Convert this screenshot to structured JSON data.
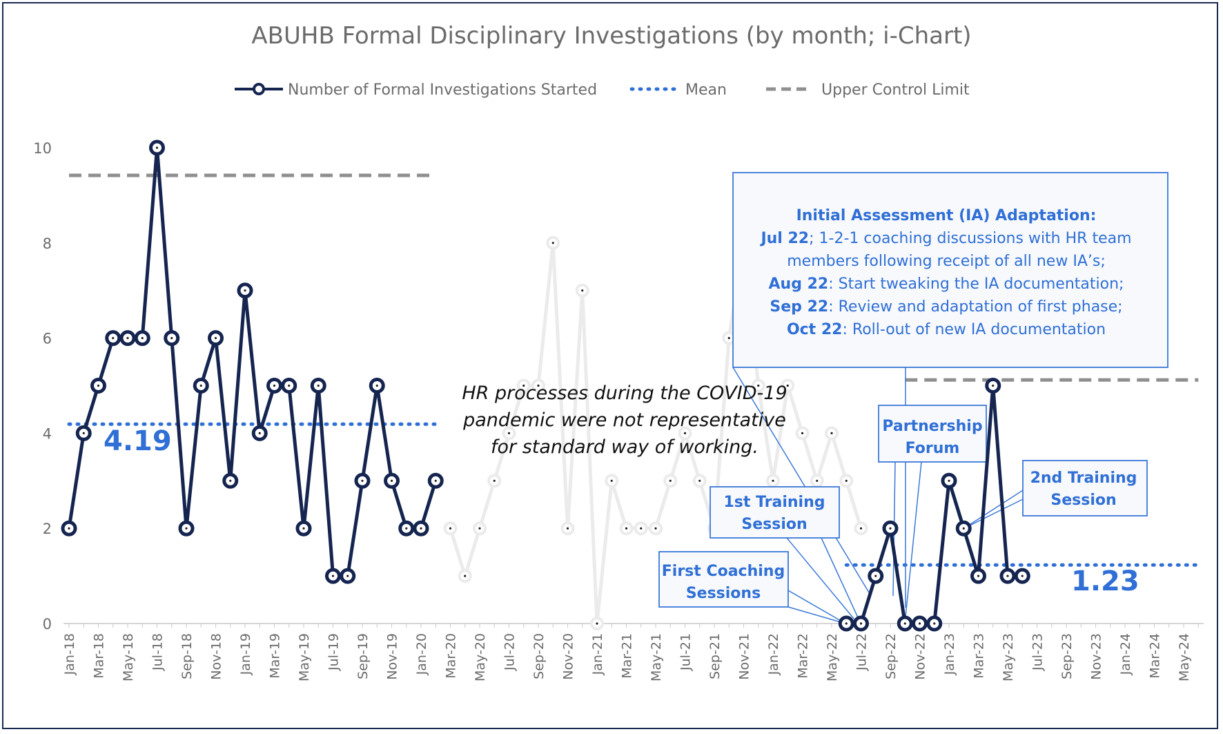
{
  "chart_data": {
    "type": "line",
    "title": "ABUHB Formal Disciplinary Investigations (by month; i-Chart)",
    "legend": {
      "placement": "top",
      "entries": [
        {
          "name": "Number of Formal Investigations Started",
          "style": "line-marker",
          "color": "#152550"
        },
        {
          "name": "Mean",
          "style": "dotted",
          "color": "#2f6fd6"
        },
        {
          "name": "Upper Control Limit",
          "style": "dashed",
          "color": "#8f8f8f"
        }
      ]
    },
    "ylim": [
      0,
      10
    ],
    "yticks": [
      0,
      2,
      4,
      6,
      8,
      10
    ],
    "x_labels": [
      "Jan-18",
      "Mar-18",
      "May-18",
      "Jul-18",
      "Sep-18",
      "Nov-18",
      "Jan-19",
      "Mar-19",
      "May-19",
      "Jul-19",
      "Sep-19",
      "Nov-19",
      "Jan-20",
      "Mar-20",
      "May-20",
      "Jul-20",
      "Sep-20",
      "Nov-20",
      "Jan-21",
      "Mar-21",
      "May-21",
      "Jul-21",
      "Sep-21",
      "Nov-21",
      "Jan-22",
      "Mar-22",
      "May-22",
      "Jul-22",
      "Sep-22",
      "Nov-22",
      "Jan-23",
      "Mar-23",
      "May-23",
      "Jul-23",
      "Sep-23",
      "Nov-23",
      "Jan-24",
      "Mar-24",
      "May-24"
    ],
    "x_month_count": 78,
    "series_pre": {
      "name": "Number of Formal Investigations Started",
      "start_month": 0,
      "values": [
        2,
        4,
        5,
        6,
        6,
        6,
        10,
        6,
        2,
        5,
        6,
        3,
        7,
        4,
        5,
        5,
        2,
        5,
        1,
        1,
        3,
        5,
        3,
        2,
        2,
        3
      ]
    },
    "series_covid": {
      "start_month": 26,
      "values": [
        2,
        1,
        2,
        3,
        4,
        5,
        5,
        8,
        2,
        7,
        0,
        3,
        2,
        2,
        2,
        3,
        4,
        3,
        2,
        6,
        8,
        5,
        3,
        5,
        4,
        3,
        4,
        3,
        2
      ]
    },
    "series_post": {
      "name": "Number of Formal Investigations Started",
      "start_month": 53,
      "values": [
        0,
        0,
        1,
        2,
        0,
        0,
        0,
        3,
        2,
        1,
        5,
        1,
        1
      ]
    },
    "mean_pre": {
      "value": 4.19,
      "label": "4.19",
      "start_month": 0,
      "end_month": 25
    },
    "ucl_pre": {
      "value": 9.42,
      "start_month": 0,
      "end_month": 25
    },
    "mean_post": {
      "value": 1.23,
      "label": "1.23",
      "start_month": 53,
      "end_month": 77
    },
    "ucl_post": {
      "value": 5.12,
      "start_month": 57,
      "end_month": 77
    },
    "annotations": {
      "covid_note": [
        "HR processes during the COVID-19",
        "pandemic were not representative",
        "for standard way of working."
      ],
      "ia_box": {
        "heading": "Initial Assessment (IA) Adaptation:",
        "lines": [
          {
            "bold": "Jul 22",
            "text": "; 1-2-1 coaching discussions with HR team"
          },
          {
            "bold": "",
            "text": "members following receipt of all new IA’s;"
          },
          {
            "bold": "Aug 22",
            "text": ": Start tweaking the IA documentation;"
          },
          {
            "bold": "Sep 22",
            "text": ": Review and adaptation of first phase;"
          },
          {
            "bold": "Oct 22",
            "text": ": Roll-out of new IA documentation"
          }
        ]
      },
      "partnership": [
        "Partnership",
        "Forum"
      ],
      "first_training": [
        "1st Training",
        "Session"
      ],
      "first_coaching": [
        "First Coaching",
        "Sessions"
      ],
      "second_training": [
        "2nd Training",
        "Session"
      ]
    },
    "colors": {
      "series": "#152550",
      "covid_series": "#ebebeb",
      "mean": "#2f6fd6",
      "ucl": "#8f8f8f",
      "callout_border": "#3a78d8",
      "callout_fill": "#f7f9fc"
    }
  }
}
